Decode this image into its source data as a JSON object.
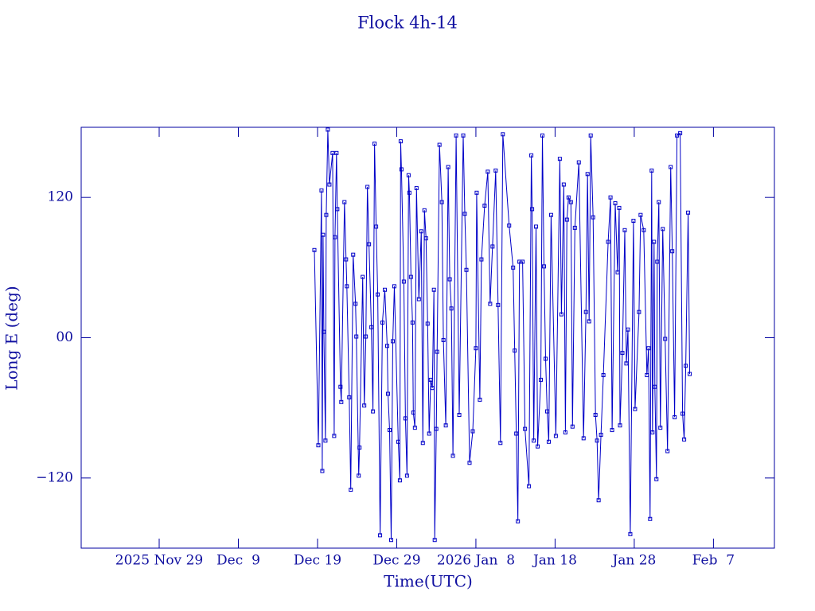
{
  "chart_data": {
    "type": "line",
    "title": "Flock 4h-14",
    "xlabel": "Time(UTC)",
    "ylabel": "Long E (deg)",
    "color": "#0000c8",
    "xlim": [
      -9.85,
      77.7
    ],
    "ylim": [
      -180,
      180
    ],
    "xticks": [
      {
        "value": 0,
        "label": "2025 Nov 29"
      },
      {
        "value": 10,
        "label": "Dec  9"
      },
      {
        "value": 20,
        "label": "Dec 19"
      },
      {
        "value": 30,
        "label": "Dec 29"
      },
      {
        "value": 40,
        "label": "2026 Jan  8"
      },
      {
        "value": 50,
        "label": "Jan 18"
      },
      {
        "value": 60,
        "label": "Jan 28"
      },
      {
        "value": 70,
        "label": "Feb  7"
      }
    ],
    "yticks": [
      {
        "value": -120,
        "label": "−120"
      },
      {
        "value": 0,
        "label": "00"
      },
      120
    ],
    "x": [
      19.6,
      20.1,
      20.5,
      20.6,
      20.7,
      20.8,
      21.0,
      21.1,
      21.3,
      21.5,
      21.9,
      22.1,
      22.2,
      22.4,
      22.5,
      22.9,
      23.0,
      23.4,
      23.6,
      23.7,
      24.0,
      24.2,
      24.5,
      24.8,
      24.9,
      25.2,
      25.3,
      25.7,
      25.9,
      26.1,
      26.3,
      26.5,
      26.8,
      27.0,
      27.2,
      27.4,
      27.6,
      27.9,
      28.2,
      28.5,
      28.8,
      28.9,
      29.1,
      29.3,
      29.5,
      29.7,
      30.2,
      30.4,
      30.5,
      30.6,
      30.9,
      31.1,
      31.3,
      31.5,
      31.6,
      31.8,
      32.0,
      32.1,
      32.3,
      32.5,
      32.8,
      33.1,
      33.3,
      33.5,
      33.7,
      33.9,
      34.1,
      34.3,
      34.5,
      34.7,
      34.8,
      35.0,
      35.1,
      35.4,
      35.7,
      35.9,
      36.2,
      36.5,
      36.7,
      36.9,
      37.1,
      37.5,
      37.9,
      38.4,
      38.6,
      38.8,
      39.2,
      39.6,
      40.0,
      40.1,
      40.5,
      40.7,
      41.1,
      41.5,
      41.8,
      42.1,
      42.5,
      42.8,
      43.1,
      43.4,
      44.2,
      44.7,
      44.9,
      45.1,
      45.3,
      45.5,
      45.9,
      46.2,
      46.7,
      47.0,
      47.1,
      47.3,
      47.6,
      47.8,
      48.2,
      48.4,
      48.6,
      48.8,
      49.0,
      49.2,
      49.5,
      50.1,
      50.6,
      50.8,
      51.1,
      51.3,
      51.5,
      51.7,
      52.0,
      52.2,
      52.5,
      53.0,
      53.6,
      53.9,
      54.1,
      54.3,
      54.5,
      54.8,
      55.1,
      55.3,
      55.5,
      55.8,
      56.1,
      56.7,
      57.0,
      57.2,
      57.6,
      57.9,
      58.1,
      58.2,
      58.5,
      58.8,
      59.0,
      59.2,
      59.5,
      59.9,
      60.1,
      60.6,
      60.8,
      61.2,
      61.6,
      61.8,
      62.0,
      62.2,
      62.3,
      62.5,
      62.6,
      62.8,
      62.9,
      63.1,
      63.3,
      63.6,
      63.9,
      64.2,
      64.6,
      64.8,
      65.1,
      65.4,
      65.8,
      66.1,
      66.3,
      66.5,
      66.8,
      67.0
    ],
    "values": [
      75,
      -92,
      126,
      -114,
      88,
      5,
      -88,
      105,
      178,
      131,
      158,
      -84,
      86,
      158,
      110,
      -42,
      -55,
      116,
      67,
      44,
      -51,
      -130,
      71,
      29,
      1,
      -118,
      -94,
      52,
      -58,
      1,
      129,
      80,
      9,
      -63,
      166,
      95,
      37,
      -169,
      13,
      41,
      -7,
      -48,
      -79,
      -173,
      -3,
      44,
      -89,
      -122,
      168,
      144,
      48,
      -69,
      -118,
      139,
      124,
      52,
      13,
      -64,
      -77,
      128,
      33,
      91,
      -90,
      109,
      85,
      12,
      -82,
      -36,
      -43,
      41,
      -173,
      -78,
      -12,
      165,
      116,
      -2,
      -75,
      146,
      50,
      25,
      -101,
      173,
      -66,
      173,
      106,
      58,
      -107,
      -80,
      -9,
      124,
      -53,
      67,
      113,
      142,
      29,
      78,
      143,
      28,
      -90,
      174,
      96,
      60,
      -11,
      -82,
      -157,
      65,
      65,
      -78,
      -127,
      156,
      110,
      -88,
      95,
      -93,
      -36,
      173,
      61,
      -18,
      -63,
      -89,
      105,
      -84,
      153,
      20,
      131,
      -81,
      101,
      120,
      116,
      -76,
      94,
      150,
      -86,
      22,
      140,
      14,
      173,
      103,
      -66,
      -88,
      -139,
      -83,
      -32,
      82,
      120,
      -79,
      115,
      56,
      111,
      -75,
      -13,
      92,
      -22,
      7,
      -168,
      100,
      -61,
      22,
      105,
      92,
      -32,
      -9,
      -155,
      143,
      -81,
      82,
      -42,
      -121,
      65,
      116,
      -77,
      93,
      -1,
      -97,
      146,
      74,
      -68,
      173,
      175,
      -65,
      -87,
      -24,
      107,
      -31
    ]
  }
}
